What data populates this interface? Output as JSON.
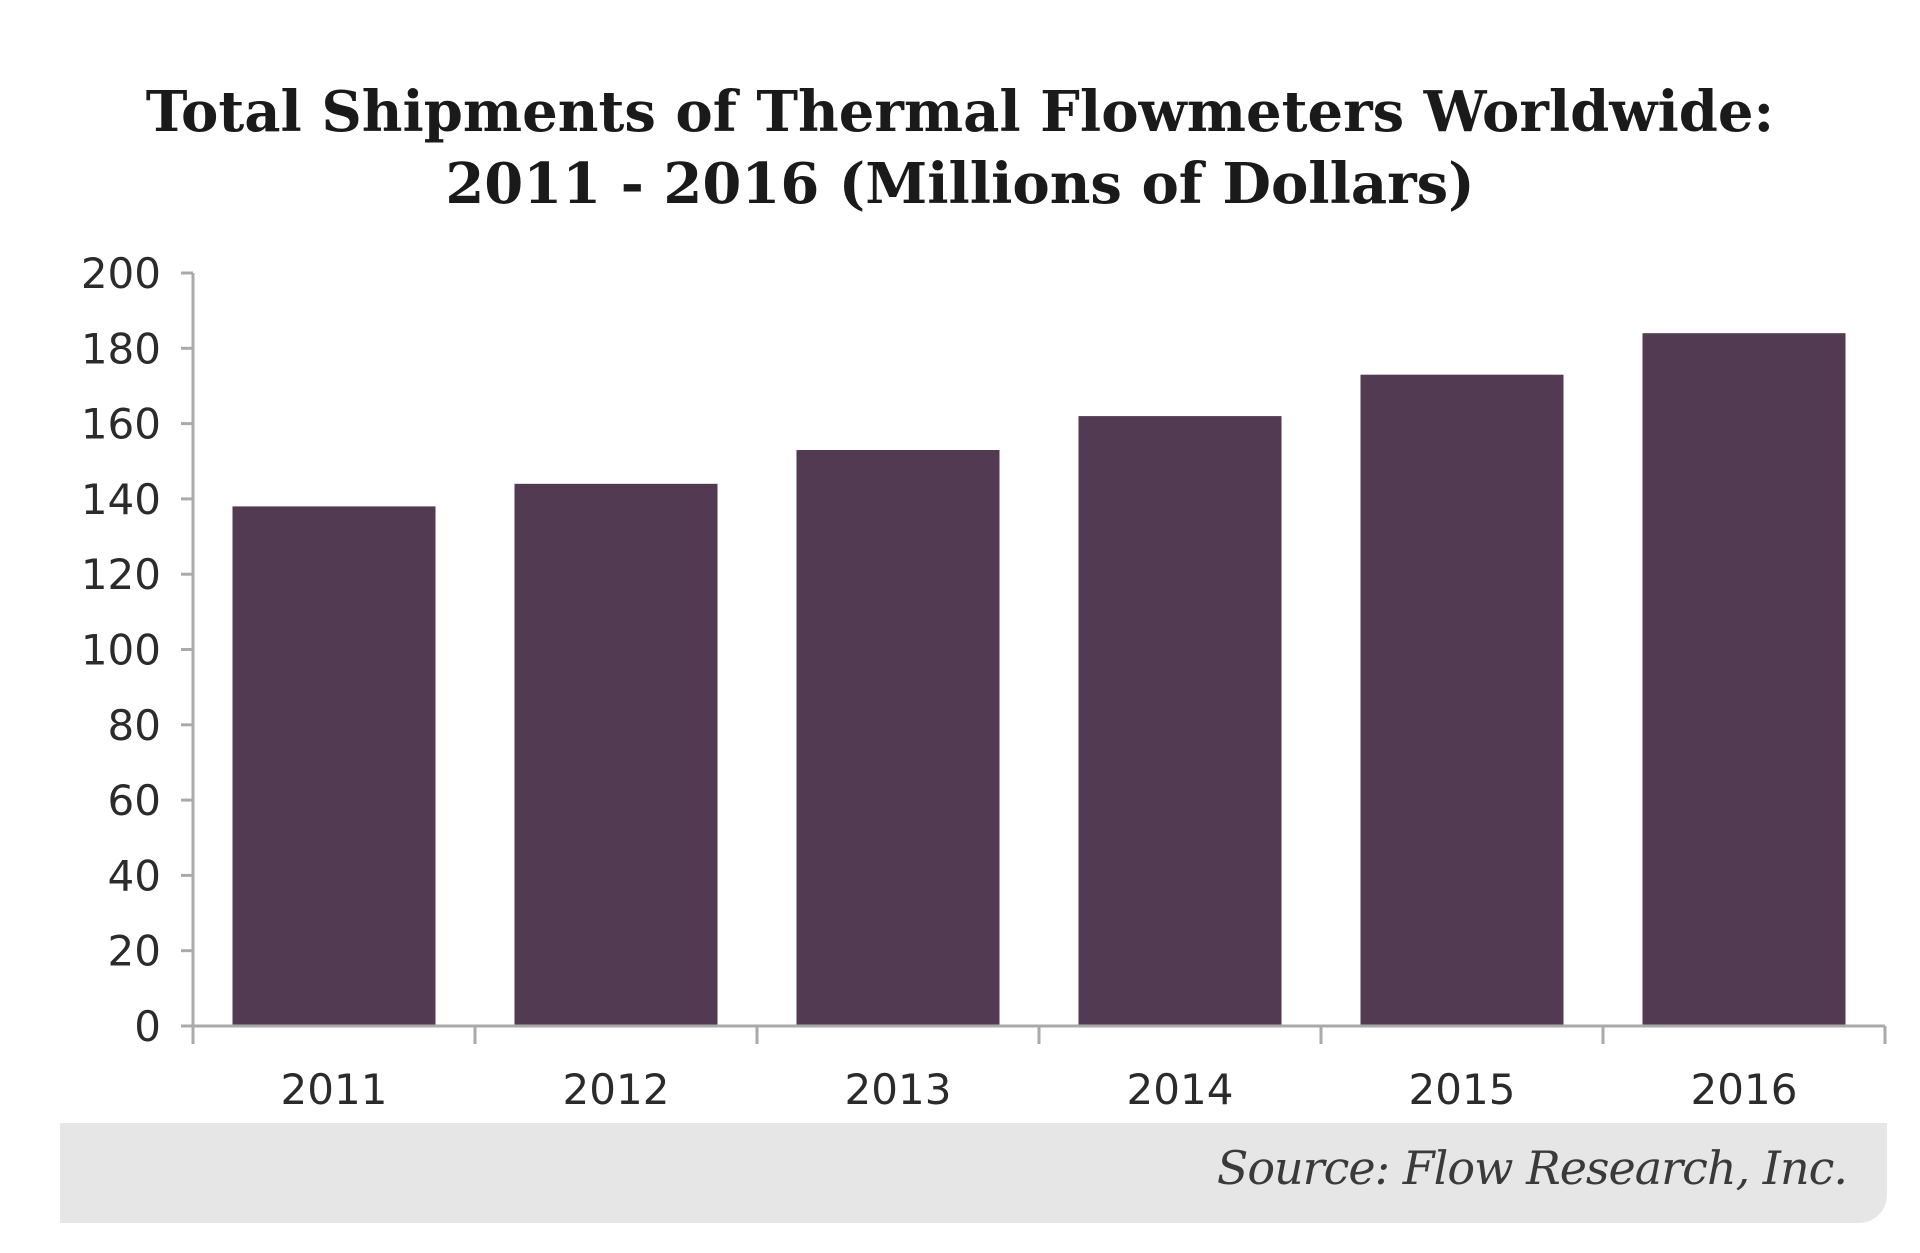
{
  "chart_data": {
    "type": "bar",
    "title_lines": [
      "Total Shipments of Thermal Flowmeters Worldwide:",
      "2011 - 2016 (Millions of Dollars)"
    ],
    "categories": [
      "2011",
      "2012",
      "2013",
      "2014",
      "2015",
      "2016"
    ],
    "values": [
      138,
      144,
      153,
      162,
      173,
      184
    ],
    "ylim": [
      0,
      200
    ],
    "yticks": [
      0,
      20,
      40,
      60,
      80,
      100,
      120,
      140,
      160,
      180,
      200
    ],
    "xlabel": "",
    "ylabel": "",
    "grid": false,
    "legend": "none",
    "bar_color": "#523a52",
    "axis_color": "#aaaaaa"
  },
  "source": {
    "text": "Source: Flow Research, Inc.",
    "background": "#e6e6e6"
  }
}
